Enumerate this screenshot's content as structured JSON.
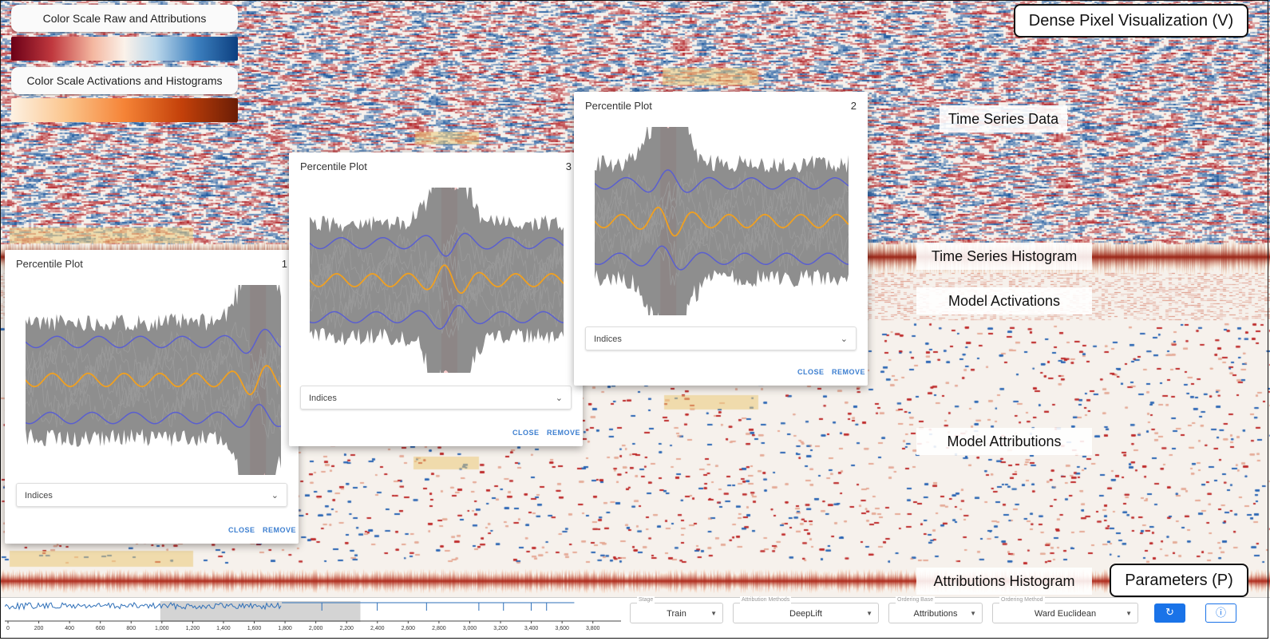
{
  "legend": {
    "raw_label": "Color Scale Raw and Attributions",
    "act_label": "Color Scale Activations and Histograms"
  },
  "regions": {
    "time_series_data": "Time Series Data",
    "time_series_histogram": "Time Series Histogram",
    "model_activations": "Model Activations",
    "model_attributions": "Model Attributions",
    "attributions_histogram": "Attributions Histogram"
  },
  "boxed": {
    "dense_pixel": "Dense Pixel Visualization (V)",
    "parameters": "Parameters (P)"
  },
  "cards": [
    {
      "title": "Percentile Plot",
      "number": "1",
      "select": "Indices",
      "close": "CLOSE",
      "remove": "REMOVE"
    },
    {
      "title": "Percentile Plot",
      "number": "3",
      "select": "Indices",
      "close": "CLOSE",
      "remove": "REMOVE"
    },
    {
      "title": "Percentile Plot",
      "number": "2",
      "select": "Indices",
      "close": "CLOSE",
      "remove": "REMOVE"
    }
  ],
  "overview": {
    "ticks": [
      "0",
      "200",
      "400",
      "600",
      "800",
      "1,000",
      "1,200",
      "1,400",
      "1,600",
      "1,800",
      "2,000",
      "2,200",
      "2,400",
      "2,600",
      "2,800",
      "3,000",
      "3,200",
      "3,400",
      "3,600",
      "3,800"
    ]
  },
  "params": {
    "stage": {
      "caption": "Stage",
      "value": "Train"
    },
    "attribution_method": {
      "caption": "Attribution Methods",
      "value": "DeepLift"
    },
    "ordering_base": {
      "caption": "Ordering Base",
      "value": "Attributions"
    },
    "ordering_method": {
      "caption": "Ordering Method",
      "value": "Ward Euclidean"
    }
  },
  "colors": {
    "raw_neg": "#8b1a2b",
    "raw_mid": "#fbf2ea",
    "raw_pos": "#1e5aa0",
    "act_low": "#fdf1e2",
    "act_high": "#8b2a05",
    "median": "#f0a020",
    "percentile": "#5a5fd0",
    "band": "#7a7a7a",
    "highlight": "#f4b4b4",
    "accent": "#1a73e8"
  },
  "icons": [
    "dropdown-chevron-icon",
    "refresh-icon",
    "info-icon"
  ]
}
